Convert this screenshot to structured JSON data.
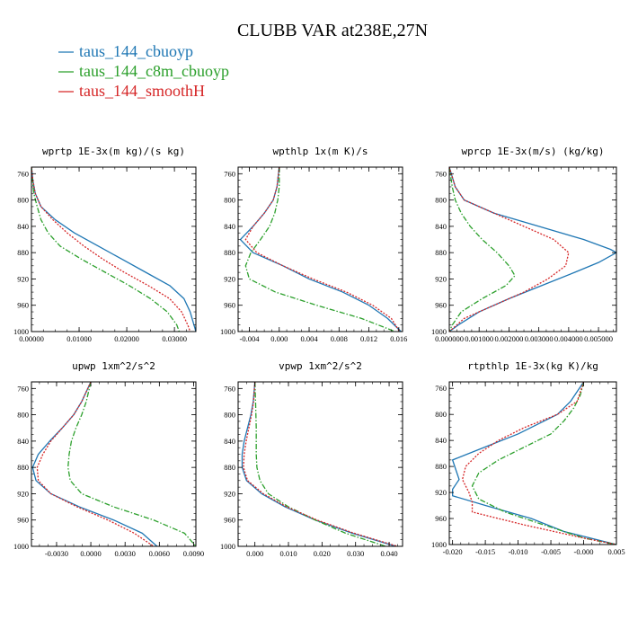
{
  "figure": {
    "title": "CLUBB VAR at238E,27N",
    "legend": [
      {
        "label": "taus_144_cbuoyp",
        "color": "#1f77b4",
        "dash": "solid"
      },
      {
        "label": "taus_144_c8m_cbuoyp",
        "color": "#2ca02c",
        "dash": "dashdot"
      },
      {
        "label": "taus_144_smoothH",
        "color": "#d62728",
        "dash": "dotted"
      }
    ]
  },
  "chart_data": [
    {
      "type": "line",
      "title": "wprtp  1E-3x(m kg)/(s kg)",
      "xlim": [
        0,
        0.0345
      ],
      "ylim": [
        1000,
        750
      ],
      "xticks": [
        0,
        0.01,
        0.02,
        0.03
      ],
      "xticklabels": [
        "0.00000",
        "0.01000",
        "0.02000",
        "0.03000"
      ],
      "yticks": [
        760,
        800,
        840,
        880,
        920,
        960,
        1000
      ],
      "series": [
        {
          "name": "taus_144_cbuoyp",
          "y": [
            750,
            770,
            790,
            810,
            830,
            850,
            870,
            890,
            910,
            930,
            950,
            970,
            990,
            1000
          ],
          "x": [
            0,
            0.0003,
            0.0008,
            0.002,
            0.005,
            0.009,
            0.014,
            0.019,
            0.024,
            0.029,
            0.032,
            0.0333,
            0.0341,
            0.0345
          ]
        },
        {
          "name": "taus_144_c8m_cbuoyp",
          "y": [
            750,
            770,
            790,
            810,
            830,
            850,
            870,
            890,
            910,
            930,
            950,
            970,
            990,
            1000
          ],
          "x": [
            0,
            0.0002,
            0.0005,
            0.0012,
            0.002,
            0.0035,
            0.006,
            0.0105,
            0.0155,
            0.0205,
            0.025,
            0.0285,
            0.0305,
            0.031
          ]
        },
        {
          "name": "taus_144_smoothH",
          "y": [
            750,
            770,
            790,
            810,
            830,
            850,
            870,
            890,
            910,
            930,
            950,
            970,
            990,
            1000
          ],
          "x": [
            0,
            0.0003,
            0.0008,
            0.002,
            0.0045,
            0.0075,
            0.011,
            0.015,
            0.0195,
            0.0245,
            0.029,
            0.0315,
            0.0328,
            0.0333
          ]
        }
      ]
    },
    {
      "type": "line",
      "title": "wpthlp  1x(m K)/s",
      "xlim": [
        -0.0055,
        0.0165
      ],
      "ylim": [
        1000,
        750
      ],
      "xticks": [
        -0.004,
        0,
        0.004,
        0.008,
        0.012,
        0.016
      ],
      "xticklabels": [
        "-0.004",
        "0.000",
        "0.004",
        "0.008",
        "0.012",
        "0.016"
      ],
      "yticks": [
        760,
        800,
        840,
        880,
        920,
        960,
        1000
      ],
      "series": [
        {
          "name": "taus_144_cbuoyp",
          "y": [
            750,
            780,
            800,
            820,
            840,
            860,
            880,
            900,
            920,
            940,
            960,
            980,
            1000
          ],
          "x": [
            0,
            -0.0003,
            -0.0008,
            -0.002,
            -0.0035,
            -0.0052,
            -0.0035,
            0.0005,
            0.004,
            0.0085,
            0.012,
            0.0145,
            0.0163
          ]
        },
        {
          "name": "taus_144_c8m_cbuoyp",
          "y": [
            750,
            780,
            800,
            820,
            840,
            860,
            880,
            900,
            920,
            940,
            960,
            980,
            1000
          ],
          "x": [
            0,
            0,
            -0.0002,
            -0.0006,
            -0.0013,
            -0.0025,
            -0.0038,
            -0.0045,
            -0.004,
            -0.0005,
            0.005,
            0.011,
            0.0155
          ]
        },
        {
          "name": "taus_144_smoothH",
          "y": [
            750,
            780,
            800,
            820,
            840,
            860,
            880,
            900,
            920,
            940,
            960,
            980,
            1000
          ],
          "x": [
            0,
            -0.0003,
            -0.0008,
            -0.002,
            -0.0035,
            -0.0045,
            -0.003,
            0.0005,
            0.0045,
            0.009,
            0.0125,
            0.015,
            0.0161
          ]
        }
      ]
    },
    {
      "type": "line",
      "title": "wprcp  1E-3x(m/s) (kg/kg)",
      "xlim": [
        0,
        0.0056
      ],
      "ylim": [
        1000,
        750
      ],
      "xticks": [
        0,
        0.001,
        0.002,
        0.003,
        0.004,
        0.005
      ],
      "xticklabels": [
        "0.000000",
        "0.001000",
        "0.002000",
        "0.003000",
        "0.004000",
        "0.005000"
      ],
      "yticks": [
        760,
        800,
        840,
        880,
        920,
        960,
        1000
      ],
      "series": [
        {
          "name": "taus_144_cbuoyp",
          "y": [
            750,
            780,
            800,
            820,
            840,
            860,
            875,
            880,
            895,
            910,
            930,
            950,
            970,
            990,
            1000
          ],
          "x": [
            0,
            0.0002,
            0.0005,
            0.0015,
            0.003,
            0.0045,
            0.0054,
            0.0056,
            0.005,
            0.0042,
            0.0031,
            0.002,
            0.001,
            0.0003,
            0
          ]
        },
        {
          "name": "taus_144_c8m_cbuoyp",
          "y": [
            750,
            780,
            800,
            820,
            840,
            860,
            880,
            900,
            915,
            930,
            950,
            970,
            990,
            1000
          ],
          "x": [
            0,
            0.0001,
            0.0002,
            0.0004,
            0.0007,
            0.0011,
            0.0016,
            0.002,
            0.0022,
            0.0019,
            0.0011,
            0.0004,
            0.0001,
            0
          ]
        },
        {
          "name": "taus_144_smoothH",
          "y": [
            750,
            780,
            800,
            820,
            840,
            860,
            880,
            900,
            920,
            940,
            960,
            980,
            1000
          ],
          "x": [
            0,
            0.0002,
            0.0005,
            0.0015,
            0.0025,
            0.0035,
            0.004,
            0.0039,
            0.0033,
            0.0025,
            0.0015,
            0.0005,
            0
          ]
        }
      ]
    },
    {
      "type": "line",
      "title": "upwp  1xm^2/s^2",
      "xlim": [
        -0.0052,
        0.0092
      ],
      "ylim": [
        1000,
        750
      ],
      "xticks": [
        -0.003,
        0,
        0.003,
        0.006,
        0.009
      ],
      "xticklabels": [
        "-0.0030",
        "0.0000",
        "0.0030",
        "0.0060",
        "0.0090"
      ],
      "yticks": [
        760,
        800,
        840,
        880,
        920,
        960,
        1000
      ],
      "series": [
        {
          "name": "taus_144_cbuoyp",
          "y": [
            750,
            780,
            800,
            820,
            840,
            860,
            880,
            900,
            920,
            940,
            960,
            980,
            1000
          ],
          "x": [
            0,
            -0.0008,
            -0.0015,
            -0.0025,
            -0.0036,
            -0.0046,
            -0.0051,
            -0.0048,
            -0.0035,
            -0.001,
            0.002,
            0.0045,
            0.0058
          ]
        },
        {
          "name": "taus_144_c8m_cbuoyp",
          "y": [
            750,
            780,
            800,
            820,
            840,
            860,
            880,
            900,
            920,
            940,
            960,
            980,
            1000
          ],
          "x": [
            0,
            -0.0004,
            -0.0008,
            -0.0013,
            -0.0017,
            -0.0019,
            -0.002,
            -0.0018,
            -0.0008,
            0.002,
            0.0055,
            0.0082,
            0.0092
          ]
        },
        {
          "name": "taus_144_smoothH",
          "y": [
            750,
            780,
            800,
            820,
            840,
            860,
            880,
            900,
            920,
            940,
            960,
            980,
            1000
          ],
          "x": [
            0,
            -0.0008,
            -0.0015,
            -0.0025,
            -0.0035,
            -0.0042,
            -0.0047,
            -0.0046,
            -0.0035,
            -0.0012,
            0.0015,
            0.0038,
            0.0055
          ]
        }
      ]
    },
    {
      "type": "line",
      "title": "vpwp  1xm^2/s^2",
      "xlim": [
        -0.005,
        0.044
      ],
      "ylim": [
        1000,
        750
      ],
      "xticks": [
        0,
        0.01,
        0.02,
        0.03,
        0.04
      ],
      "xticklabels": [
        "0.000",
        "0.010",
        "0.020",
        "0.030",
        "0.040"
      ],
      "yticks": [
        760,
        800,
        840,
        880,
        920,
        960,
        1000
      ],
      "series": [
        {
          "name": "taus_144_cbuoyp",
          "y": [
            750,
            780,
            800,
            820,
            840,
            860,
            880,
            900,
            920,
            940,
            960,
            980,
            1000
          ],
          "x": [
            0,
            -0.0005,
            -0.0012,
            -0.0022,
            -0.0032,
            -0.0038,
            -0.0038,
            -0.0025,
            0.002,
            0.009,
            0.018,
            0.029,
            0.042
          ]
        },
        {
          "name": "taus_144_c8m_cbuoyp",
          "y": [
            750,
            780,
            800,
            820,
            840,
            860,
            880,
            900,
            920,
            940,
            960,
            980,
            1000
          ],
          "x": [
            0,
            0.0002,
            0.0003,
            0.0004,
            0.0004,
            0.0004,
            0.0006,
            0.0015,
            0.004,
            0.01,
            0.018,
            0.027,
            0.039
          ]
        },
        {
          "name": "taus_144_smoothH",
          "y": [
            750,
            780,
            800,
            820,
            840,
            860,
            880,
            900,
            920,
            940,
            960,
            980,
            1000
          ],
          "x": [
            0,
            -0.0004,
            -0.001,
            -0.0018,
            -0.0026,
            -0.0032,
            -0.0034,
            -0.0022,
            0.0025,
            0.0095,
            0.0185,
            0.0295,
            0.0425
          ]
        }
      ]
    },
    {
      "type": "line",
      "title": "rtpthlp  1E-3x(kg K)/kg",
      "xlim": [
        -0.0205,
        0.005
      ],
      "ylim": [
        1000,
        750
      ],
      "xticks": [
        -0.02,
        -0.015,
        -0.01,
        -0.005,
        0,
        0.005
      ],
      "xticklabels": [
        "-0.020",
        "-0.015",
        "-0.010",
        "-0.005",
        "-0.000",
        "0.005"
      ],
      "yticks": [
        760,
        800,
        840,
        880,
        920,
        960,
        1000
      ],
      "series": [
        {
          "name": "taus_144_cbuoyp",
          "y": [
            750,
            780,
            800,
            830,
            850,
            870,
            885,
            900,
            915,
            925,
            940,
            960,
            980,
            1000
          ],
          "x": [
            0,
            -0.002,
            -0.004,
            -0.01,
            -0.015,
            -0.02,
            -0.0195,
            -0.019,
            -0.02,
            -0.02,
            -0.015,
            -0.008,
            -0.003,
            0.005
          ]
        },
        {
          "name": "taus_144_c8m_cbuoyp",
          "y": [
            750,
            770,
            790,
            810,
            830,
            850,
            870,
            890,
            910,
            930,
            950,
            970,
            990,
            1000
          ],
          "x": [
            0,
            -0.0005,
            -0.0015,
            -0.003,
            -0.005,
            -0.009,
            -0.013,
            -0.016,
            -0.017,
            -0.016,
            -0.012,
            -0.006,
            0,
            0.005
          ]
        },
        {
          "name": "taus_144_smoothH",
          "y": [
            750,
            780,
            800,
            820,
            840,
            860,
            880,
            900,
            910,
            920,
            935,
            950,
            970,
            990,
            1000
          ],
          "x": [
            0,
            -0.001,
            -0.004,
            -0.009,
            -0.013,
            -0.016,
            -0.018,
            -0.0185,
            -0.018,
            -0.0175,
            -0.017,
            -0.017,
            -0.009,
            0,
            0.005
          ]
        }
      ]
    }
  ]
}
